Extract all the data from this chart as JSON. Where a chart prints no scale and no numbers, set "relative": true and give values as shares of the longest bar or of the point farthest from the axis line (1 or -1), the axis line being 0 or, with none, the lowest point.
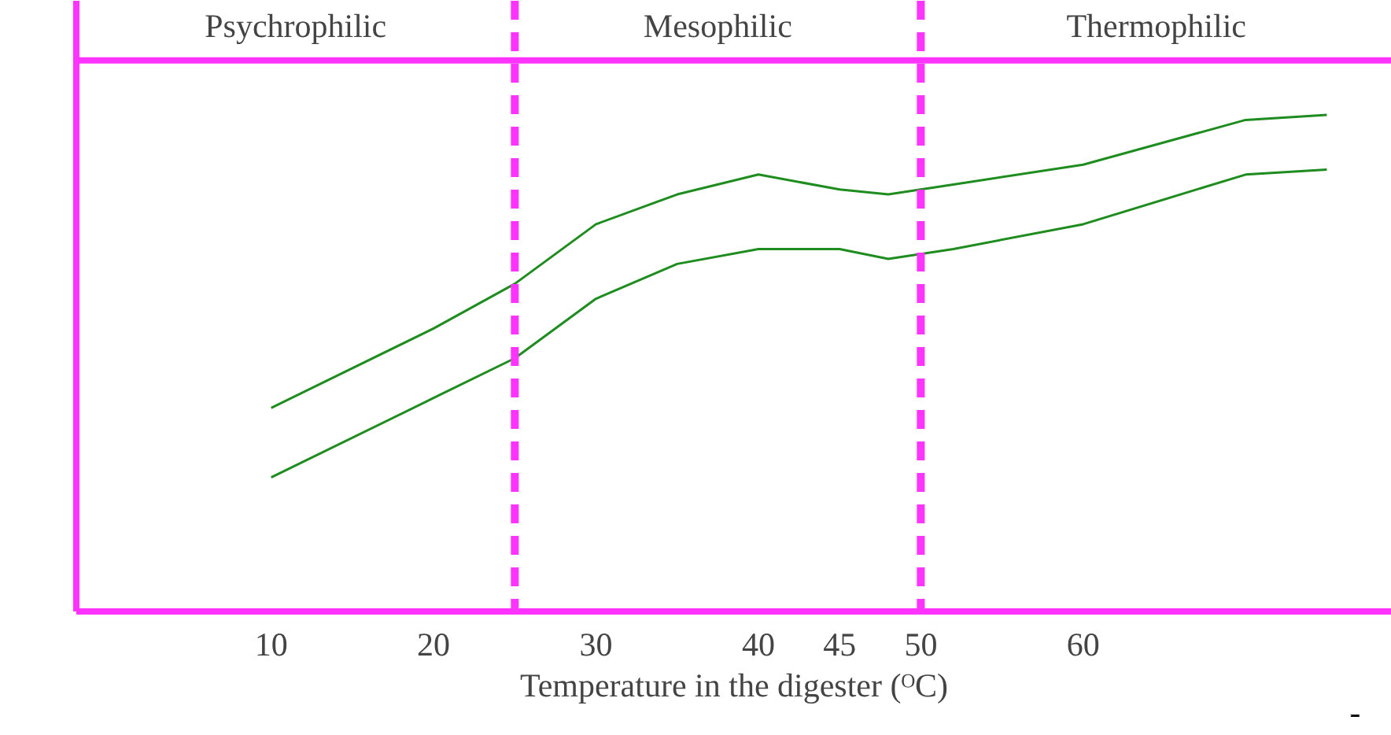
{
  "chart_data": {
    "type": "line",
    "relative": true,
    "xlabel": "Temperature in the digester (ᴼC)",
    "xlim": [
      -2,
      79
    ],
    "xticks": [
      10,
      20,
      30,
      40,
      45,
      50,
      60
    ],
    "grid": false,
    "series": [
      {
        "color": "#1e8c1e",
        "x": [
          10,
          20,
          25,
          30,
          35,
          40,
          45,
          48,
          52,
          60,
          70,
          75
        ],
        "values": [
          0.41,
          0.57,
          0.66,
          0.78,
          0.84,
          0.88,
          0.85,
          0.84,
          0.86,
          0.9,
          0.99,
          1.0
        ]
      },
      {
        "color": "#1e8c1e",
        "x": [
          10,
          20,
          25,
          30,
          35,
          40,
          45,
          48,
          52,
          60,
          70,
          75
        ],
        "values": [
          0.27,
          0.43,
          0.51,
          0.63,
          0.7,
          0.73,
          0.73,
          0.71,
          0.73,
          0.78,
          0.88,
          0.89
        ]
      }
    ],
    "annotations": [
      "Psychrophilic",
      "Mesophilic",
      "Thermophilic"
    ],
    "ref_lines": [
      {
        "axis": "x",
        "value": 25,
        "color": "#ff33ff",
        "line_style": "dashed"
      },
      {
        "axis": "x",
        "value": 50,
        "color": "#ff33ff",
        "line_style": "dashed"
      }
    ]
  }
}
